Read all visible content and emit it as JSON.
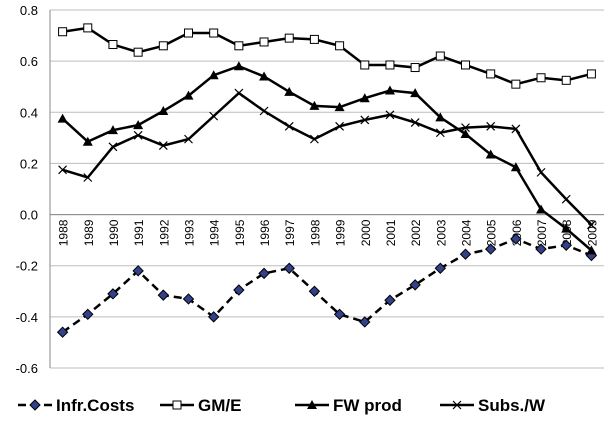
{
  "chart_data": {
    "type": "line",
    "categories": [
      "1988",
      "1989",
      "1990",
      "1991",
      "1992",
      "1993",
      "1994",
      "1995",
      "1996",
      "1997",
      "1998",
      "1999",
      "2000",
      "2001",
      "2002",
      "2003",
      "2004",
      "2005",
      "2006",
      "2007",
      "2008",
      "2009"
    ],
    "ylim": [
      -0.6,
      0.8
    ],
    "yticks": [
      0.8,
      0.6,
      0.4,
      0.2,
      {
        "value": 0,
        "label": "0.0"
      },
      -0.2,
      -0.4,
      -0.6
    ],
    "grid": true,
    "legend": "bottom",
    "series": [
      {
        "name": "Infr.Costs",
        "color": "#000000",
        "marker": "diamond",
        "dashed": true,
        "values": [
          -0.46,
          -0.39,
          -0.31,
          -0.22,
          -0.315,
          -0.33,
          -0.4,
          -0.295,
          -0.23,
          -0.21,
          -0.3,
          -0.39,
          -0.42,
          -0.335,
          -0.275,
          -0.21,
          -0.155,
          -0.135,
          -0.095,
          -0.135,
          -0.12,
          -0.16
        ]
      },
      {
        "name": "GM/E",
        "color": "#000000",
        "marker": "square",
        "dashed": false,
        "values": [
          0.715,
          0.73,
          0.665,
          0.635,
          0.66,
          0.71,
          0.71,
          0.66,
          0.675,
          0.69,
          0.685,
          0.66,
          0.585,
          0.585,
          0.575,
          0.62,
          0.585,
          0.55,
          0.51,
          0.535,
          0.525,
          0.55
        ]
      },
      {
        "name": "FW prod",
        "color": "#000000",
        "marker": "triangle",
        "dashed": false,
        "values": [
          0.375,
          0.285,
          0.33,
          0.35,
          0.405,
          0.465,
          0.545,
          0.58,
          0.54,
          0.48,
          0.425,
          0.42,
          0.455,
          0.485,
          0.475,
          0.38,
          0.315,
          0.235,
          0.185,
          0.02,
          -0.055,
          -0.14
        ]
      },
      {
        "name": "Subs./W",
        "color": "#000000",
        "marker": "x",
        "dashed": false,
        "values": [
          0.175,
          0.145,
          0.265,
          0.31,
          0.27,
          0.295,
          0.385,
          0.475,
          0.405,
          0.345,
          0.295,
          0.345,
          0.37,
          0.39,
          0.36,
          0.32,
          0.34,
          0.345,
          0.335,
          0.165,
          0.06,
          -0.04
        ]
      }
    ]
  }
}
